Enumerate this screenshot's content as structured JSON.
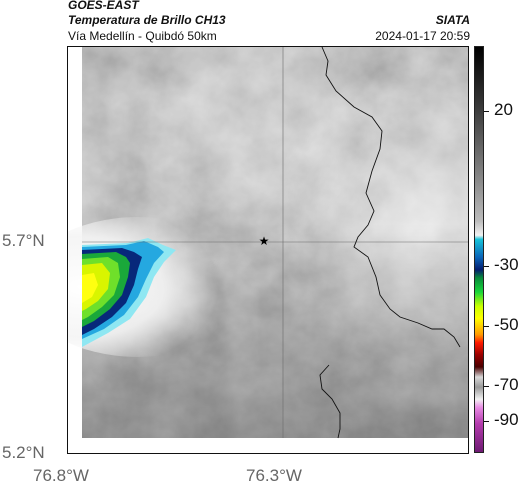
{
  "header": {
    "satellite": "GOES-EAST",
    "product": "Temperatura de Brillo CH13",
    "region": "Vía Medellín - Quibdó 50km",
    "agency": "SIATA",
    "timestamp": "2024-01-17 20:59"
  },
  "map": {
    "y_axis_labels": [
      "5.7°N",
      "5.2°N"
    ],
    "x_axis_labels": [
      "76.8°W",
      "76.3°W"
    ],
    "marker_icon": "star-icon"
  },
  "colorbar": {
    "labels": [
      "20",
      "-30",
      "-50",
      "-70",
      "-90"
    ]
  }
}
